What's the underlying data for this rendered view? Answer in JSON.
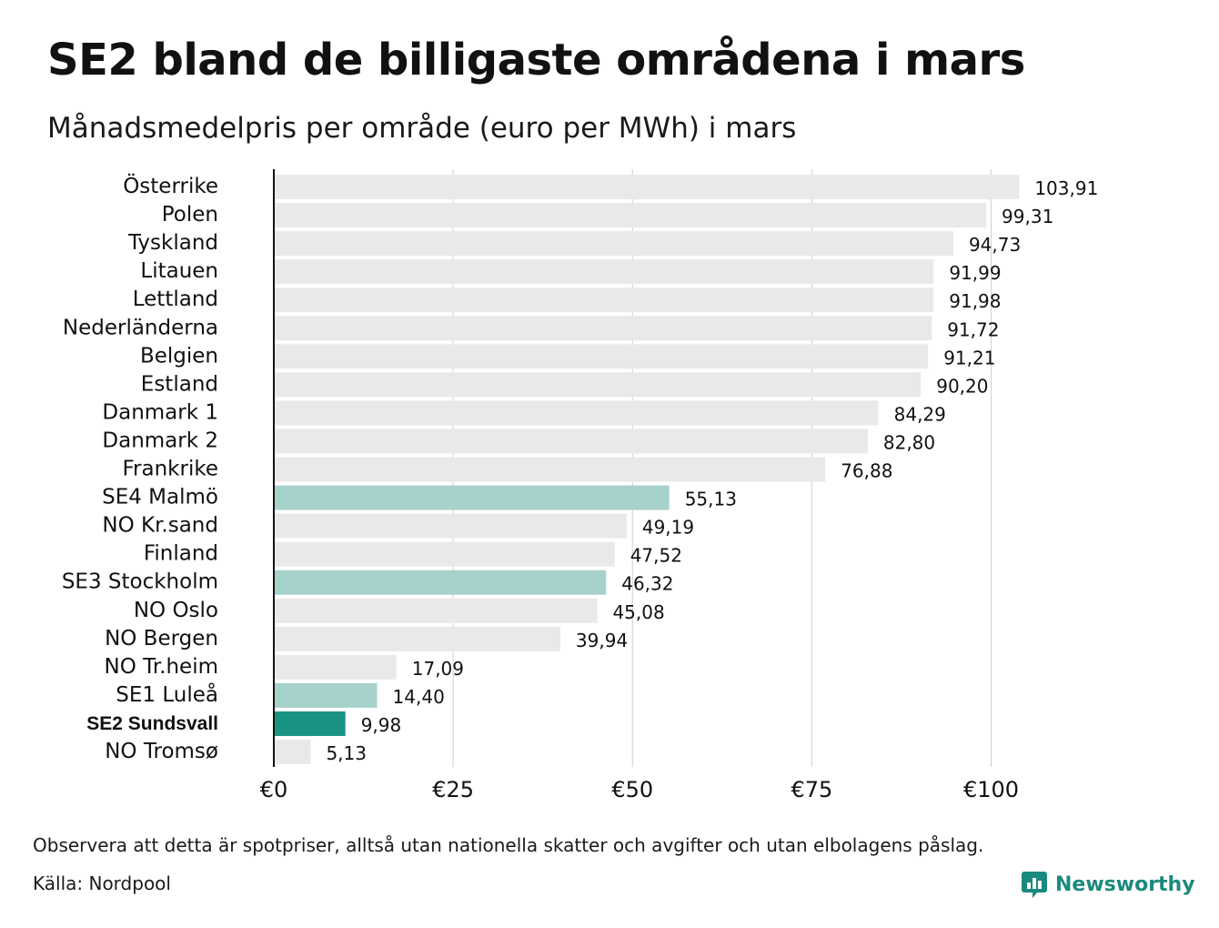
{
  "title": "SE2 bland de billigaste områdena i mars",
  "subtitle": "Månadsmedelpris per område (euro per MWh) i mars",
  "footer": {
    "note": "Observera att detta är spotpriser, alltså utan nationella skatter och avgifter och utan elbolagens påslag.",
    "source": "Källa: Nordpool",
    "brand": "Newsworthy",
    "brand_icon": "newsworthy-chart-bubble-icon"
  },
  "colors": {
    "default_bar": "#e9e9e9",
    "se_bar": "#a7d1cb",
    "highlight_bar": "#1a9383",
    "brand": "#1a8a7e",
    "grid": "#cfcfcf",
    "axis": "#111111"
  },
  "chart_data": {
    "type": "bar",
    "orientation": "horizontal",
    "categories": [
      "Österrike",
      "Polen",
      "Tyskland",
      "Litauen",
      "Lettland",
      "Nederländerna",
      "Belgien",
      "Estland",
      "Danmark 1",
      "Danmark 2",
      "Frankrike",
      "SE4 Malmö",
      "NO Kr.sand",
      "Finland",
      "SE3 Stockholm",
      "NO Oslo",
      "NO Bergen",
      "NO Tr.heim",
      "SE1 Luleå",
      "SE2 Sundsvall",
      "NO Tromsø"
    ],
    "values": [
      103.91,
      99.31,
      94.73,
      91.99,
      91.98,
      91.72,
      91.21,
      90.2,
      84.29,
      82.8,
      76.88,
      55.13,
      49.19,
      47.52,
      46.32,
      45.08,
      39.94,
      17.09,
      14.4,
      9.98,
      5.13
    ],
    "value_labels": [
      "103,91",
      "99,31",
      "94,73",
      "91,99",
      "91,98",
      "91,72",
      "91,21",
      "90,20",
      "84,29",
      "82,80",
      "76,88",
      "55,13",
      "49,19",
      "47,52",
      "46,32",
      "45,08",
      "39,94",
      "17,09",
      "14,40",
      "9,98",
      "5,13"
    ],
    "groups": [
      "other",
      "other",
      "other",
      "other",
      "other",
      "other",
      "other",
      "other",
      "other",
      "other",
      "other",
      "se",
      "other",
      "other",
      "se",
      "other",
      "other",
      "other",
      "se",
      "highlight",
      "other"
    ],
    "highlight": "SE2 Sundsvall",
    "xticks": [
      0,
      25,
      50,
      75,
      100
    ],
    "xtick_labels": [
      "€0",
      "€25",
      "€50",
      "€75",
      "€100"
    ],
    "xlim": [
      0,
      105
    ],
    "grid": true,
    "legend": "none"
  }
}
